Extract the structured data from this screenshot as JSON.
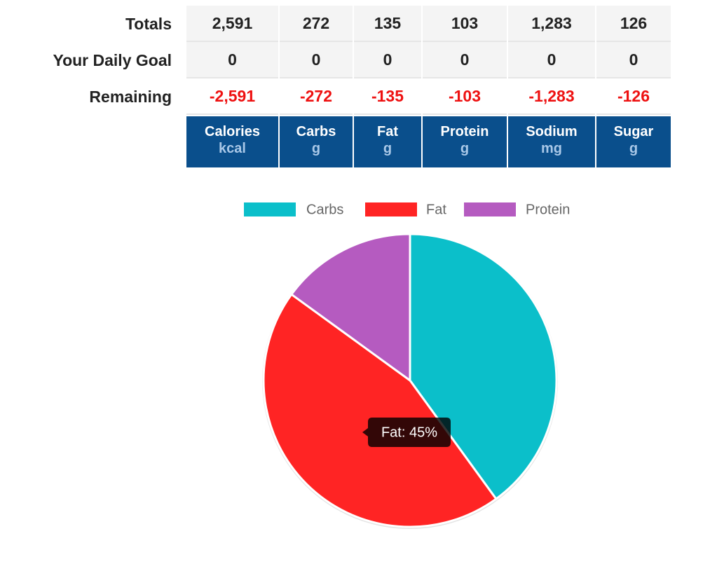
{
  "table": {
    "columns": [
      {
        "name": "Calories",
        "unit": "kcal"
      },
      {
        "name": "Carbs",
        "unit": "g"
      },
      {
        "name": "Fat",
        "unit": "g"
      },
      {
        "name": "Protein",
        "unit": "g"
      },
      {
        "name": "Sodium",
        "unit": "mg"
      },
      {
        "name": "Sugar",
        "unit": "g"
      }
    ],
    "rows": [
      {
        "label": "Totals",
        "cells": [
          "2,591",
          "272",
          "135",
          "103",
          "1,283",
          "126"
        ]
      },
      {
        "label": "Your Daily Goal",
        "cells": [
          "0",
          "0",
          "0",
          "0",
          "0",
          "0"
        ]
      },
      {
        "label": "Remaining",
        "cells": [
          "-2,591",
          "-272",
          "-135",
          "-103",
          "-1,283",
          "-126"
        ]
      }
    ]
  },
  "chart_data": {
    "type": "pie",
    "categories": [
      "Carbs",
      "Fat",
      "Protein"
    ],
    "values": [
      40,
      45,
      15
    ],
    "colors": [
      "#0bbfca",
      "#ff2424",
      "#b55bc0"
    ],
    "legend": "top",
    "tooltip": "Fat: 45%"
  }
}
